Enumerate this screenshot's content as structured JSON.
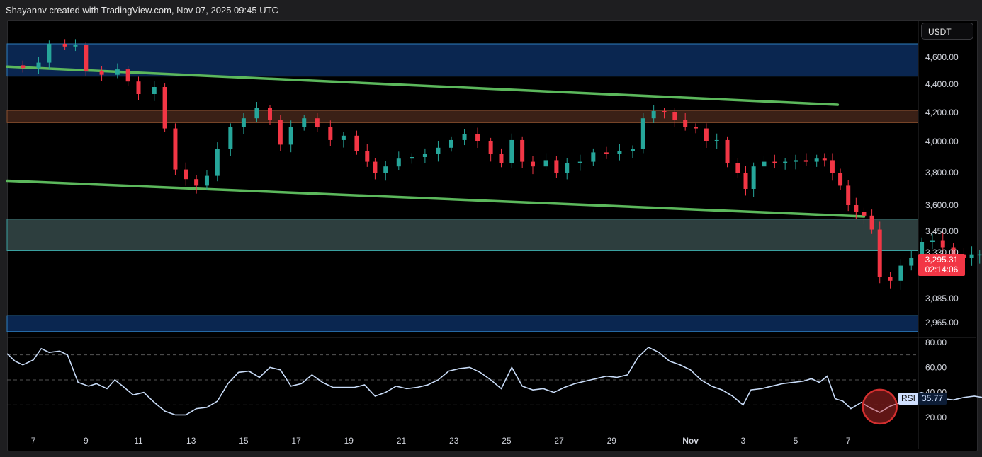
{
  "header": {
    "text": "Shayannv created with TradingView.com, Nov 07, 2025 09:45 UTC"
  },
  "currency": "USDT",
  "price_tag": {
    "price": "3,295.31",
    "countdown": "02:14:06"
  },
  "rsi_tag": {
    "label": "RSI",
    "value": "35.77"
  },
  "colors": {
    "up": "#26a69a",
    "down": "#f23645",
    "trendline": "#5cb85c",
    "blue_zone": "#0a2650",
    "blue_border": "#2e7fbf",
    "orange_zone": "#3a2016",
    "teal_zone": "#2d3e3e",
    "rsi_line": "#c9dcf8",
    "rsi_circle": "#d32f2f"
  },
  "chart_data": [
    {
      "type": "candlestick",
      "title": "",
      "ylabel": "USDT",
      "y_ticks": [
        4600,
        4400,
        4200,
        4000,
        3800,
        3600,
        3450,
        3330,
        3085,
        2965
      ],
      "y_tick_labels": [
        "4,600.00",
        "4,400.00",
        "4,200.00",
        "4,000.00",
        "3,800.00",
        "3,600.00",
        "3,450.00",
        "3,330.00",
        "3,085.00",
        "2,965.00"
      ],
      "x_tick_labels": [
        "7",
        "9",
        "11",
        "13",
        "15",
        "17",
        "19",
        "21",
        "23",
        "25",
        "27",
        "29",
        "Nov",
        "3",
        "5",
        "7"
      ],
      "x_tick_days": [
        6,
        8,
        10,
        12,
        14,
        16,
        18,
        20,
        22,
        24,
        26,
        28,
        31,
        33,
        35,
        37
      ],
      "zones": [
        {
          "name": "resistance-blue",
          "from": 4460,
          "to": 4700,
          "color": "blue"
        },
        {
          "name": "supply-orange",
          "from": 4130,
          "to": 4215,
          "color": "orange"
        },
        {
          "name": "support-teal",
          "from": 3340,
          "to": 3520,
          "color": "teal"
        },
        {
          "name": "demand-blue",
          "from": 2920,
          "to": 3000,
          "color": "blue"
        }
      ],
      "trendlines": [
        {
          "name": "upper-channel",
          "from": {
            "day": 5,
            "price": 4530
          },
          "to": {
            "day": 36.6,
            "price": 4255
          }
        },
        {
          "name": "lower-channel",
          "from": {
            "day": 5,
            "price": 3750
          },
          "to": {
            "day": 37.6,
            "price": 3535
          }
        }
      ],
      "series": [
        {
          "name": "",
          "points": [
            [
              5.0,
              4540
            ],
            [
              5.6,
              4520
            ],
            [
              6.2,
              4560
            ],
            [
              6.6,
              4700
            ],
            [
              7.2,
              4680
            ],
            [
              7.6,
              4690
            ],
            [
              8.0,
              4500
            ],
            [
              8.6,
              4470
            ],
            [
              9.2,
              4510
            ],
            [
              9.6,
              4420
            ],
            [
              10.0,
              4330
            ],
            [
              10.6,
              4380
            ],
            [
              11.0,
              4090
            ],
            [
              11.4,
              3820
            ],
            [
              11.8,
              3760
            ],
            [
              12.2,
              3720
            ],
            [
              12.6,
              3780
            ],
            [
              13.0,
              3950
            ],
            [
              13.5,
              4100
            ],
            [
              14.0,
              4160
            ],
            [
              14.5,
              4230
            ],
            [
              15.0,
              4150
            ],
            [
              15.4,
              3980
            ],
            [
              15.8,
              4100
            ],
            [
              16.3,
              4160
            ],
            [
              16.8,
              4100
            ],
            [
              17.3,
              4010
            ],
            [
              17.8,
              4040
            ],
            [
              18.3,
              3940
            ],
            [
              18.7,
              3870
            ],
            [
              19.0,
              3800
            ],
            [
              19.4,
              3840
            ],
            [
              19.9,
              3890
            ],
            [
              20.4,
              3900
            ],
            [
              20.9,
              3920
            ],
            [
              21.4,
              3960
            ],
            [
              21.9,
              4010
            ],
            [
              22.4,
              4050
            ],
            [
              22.9,
              4000
            ],
            [
              23.4,
              3920
            ],
            [
              23.8,
              3860
            ],
            [
              24.2,
              4010
            ],
            [
              24.6,
              3870
            ],
            [
              25.0,
              3840
            ],
            [
              25.5,
              3880
            ],
            [
              25.9,
              3800
            ],
            [
              26.3,
              3860
            ],
            [
              26.8,
              3870
            ],
            [
              27.3,
              3930
            ],
            [
              27.8,
              3920
            ],
            [
              28.3,
              3940
            ],
            [
              28.8,
              3950
            ],
            [
              29.2,
              4160
            ],
            [
              29.6,
              4210
            ],
            [
              30.0,
              4200
            ],
            [
              30.4,
              4150
            ],
            [
              30.8,
              4100
            ],
            [
              31.2,
              4090
            ],
            [
              31.6,
              4000
            ],
            [
              32.0,
              4010
            ],
            [
              32.4,
              3860
            ],
            [
              32.8,
              3800
            ],
            [
              33.1,
              3700
            ],
            [
              33.4,
              3840
            ],
            [
              33.8,
              3870
            ],
            [
              34.2,
              3860
            ],
            [
              34.6,
              3870
            ],
            [
              35.0,
              3880
            ],
            [
              35.4,
              3870
            ],
            [
              35.8,
              3890
            ],
            [
              36.1,
              3880
            ],
            [
              36.4,
              3800
            ],
            [
              36.7,
              3720
            ],
            [
              37.0,
              3600
            ],
            [
              37.3,
              3560
            ],
            [
              37.6,
              3540
            ],
            [
              37.9,
              3460
            ],
            [
              38.2,
              3200
            ],
            [
              38.6,
              3180
            ],
            [
              39.0,
              3260
            ],
            [
              39.4,
              3300
            ],
            [
              39.8,
              3390
            ],
            [
              40.2,
              3400
            ],
            [
              40.6,
              3360
            ],
            [
              41.0,
              3320
            ],
            [
              41.4,
              3300
            ],
            [
              41.7,
              3320
            ],
            [
              42.0,
              3320
            ],
            [
              42.3,
              3295
            ]
          ]
        }
      ],
      "last_price": 3295.31
    },
    {
      "type": "line",
      "title": "",
      "series_name": "RSI",
      "y_ticks": [
        80,
        60,
        40,
        20
      ],
      "y_tick_labels": [
        "80.00",
        "60.00",
        "40.00",
        "20.00"
      ],
      "guides": [
        70,
        50,
        30
      ],
      "highlight": {
        "day": 38.2,
        "value": 24
      },
      "points": [
        [
          5.0,
          71
        ],
        [
          5.3,
          65
        ],
        [
          5.6,
          62
        ],
        [
          6.0,
          66
        ],
        [
          6.3,
          75
        ],
        [
          6.6,
          72
        ],
        [
          7.0,
          73
        ],
        [
          7.3,
          70
        ],
        [
          7.7,
          48
        ],
        [
          8.1,
          45
        ],
        [
          8.4,
          47
        ],
        [
          8.8,
          43
        ],
        [
          9.1,
          50
        ],
        [
          9.4,
          45
        ],
        [
          9.8,
          38
        ],
        [
          10.2,
          40
        ],
        [
          10.6,
          32
        ],
        [
          11.0,
          25
        ],
        [
          11.4,
          22
        ],
        [
          11.8,
          22
        ],
        [
          12.2,
          27
        ],
        [
          12.6,
          28
        ],
        [
          13.0,
          33
        ],
        [
          13.4,
          47
        ],
        [
          13.8,
          56
        ],
        [
          14.2,
          57
        ],
        [
          14.6,
          52
        ],
        [
          15.0,
          60
        ],
        [
          15.4,
          58
        ],
        [
          15.8,
          45
        ],
        [
          16.2,
          47
        ],
        [
          16.6,
          54
        ],
        [
          17.0,
          48
        ],
        [
          17.4,
          44
        ],
        [
          17.8,
          44
        ],
        [
          18.2,
          44
        ],
        [
          18.6,
          46
        ],
        [
          19.0,
          37
        ],
        [
          19.4,
          40
        ],
        [
          19.8,
          45
        ],
        [
          20.2,
          43
        ],
        [
          20.6,
          44
        ],
        [
          21.0,
          46
        ],
        [
          21.4,
          50
        ],
        [
          21.8,
          57
        ],
        [
          22.2,
          59
        ],
        [
          22.6,
          60
        ],
        [
          23.0,
          56
        ],
        [
          23.4,
          50
        ],
        [
          23.8,
          43
        ],
        [
          24.2,
          60
        ],
        [
          24.6,
          45
        ],
        [
          25.0,
          42
        ],
        [
          25.4,
          43
        ],
        [
          25.8,
          40
        ],
        [
          26.2,
          44
        ],
        [
          26.6,
          47
        ],
        [
          27.0,
          49
        ],
        [
          27.4,
          51
        ],
        [
          27.8,
          53
        ],
        [
          28.2,
          52
        ],
        [
          28.6,
          54
        ],
        [
          29.0,
          68
        ],
        [
          29.4,
          76
        ],
        [
          29.8,
          72
        ],
        [
          30.2,
          65
        ],
        [
          30.6,
          62
        ],
        [
          31.0,
          58
        ],
        [
          31.4,
          50
        ],
        [
          31.8,
          45
        ],
        [
          32.2,
          42
        ],
        [
          32.6,
          37
        ],
        [
          33.0,
          30
        ],
        [
          33.3,
          42
        ],
        [
          33.7,
          43
        ],
        [
          34.1,
          45
        ],
        [
          34.5,
          47
        ],
        [
          34.9,
          48
        ],
        [
          35.3,
          49
        ],
        [
          35.6,
          51
        ],
        [
          35.9,
          48
        ],
        [
          36.2,
          53
        ],
        [
          36.5,
          35
        ],
        [
          36.8,
          33
        ],
        [
          37.1,
          27
        ],
        [
          37.5,
          32
        ],
        [
          37.8,
          28
        ],
        [
          38.2,
          24
        ],
        [
          38.6,
          29
        ],
        [
          39.0,
          32
        ],
        [
          39.4,
          38
        ],
        [
          39.8,
          40
        ],
        [
          40.2,
          37
        ],
        [
          40.6,
          35
        ],
        [
          41.0,
          34
        ],
        [
          41.4,
          36
        ],
        [
          41.8,
          37
        ],
        [
          42.1,
          36
        ],
        [
          42.3,
          35.77
        ]
      ]
    }
  ]
}
